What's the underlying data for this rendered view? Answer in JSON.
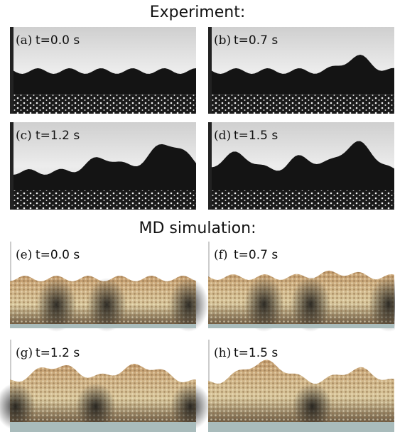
{
  "sections": [
    {
      "title": "Experiment:",
      "panels": [
        {
          "label": "(a)",
          "time": "t=0.0 s"
        },
        {
          "label": "(b)",
          "time": "t=0.7 s"
        },
        {
          "label": "(c)",
          "time": "t=1.2 s"
        },
        {
          "label": "(d)",
          "time": "t=1.5 s"
        }
      ]
    },
    {
      "title": "MD simulation:",
      "panels": [
        {
          "label": "(e)",
          "time": "t=0.0 s"
        },
        {
          "label": "(f)",
          "time": "t=0.7 s"
        },
        {
          "label": "(g)",
          "time": "t=1.2 s"
        },
        {
          "label": "(h)",
          "time": "t=1.5 s"
        }
      ]
    }
  ]
}
